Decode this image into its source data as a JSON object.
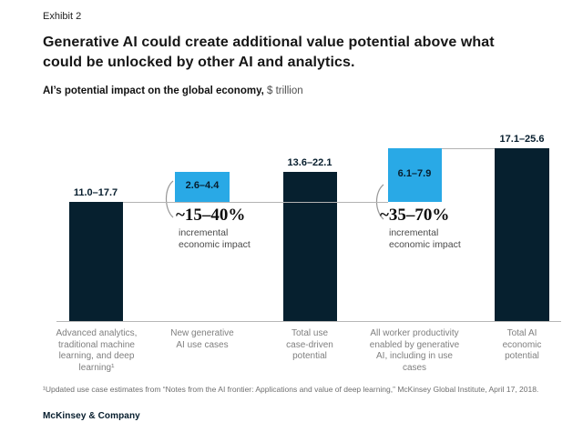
{
  "page": {
    "exhibit_label": "Exhibit 2",
    "title_lines": [
      "Generative AI could create additional value potential above what",
      "could be unlocked by other AI and analytics."
    ],
    "subtitle_bold": "AI’s potential impact on the global economy,",
    "subtitle_unit": " $ trillion",
    "footnote": "¹Updated use case estimates from “Notes from the AI frontier: Applications and value of deep learning,” McKinsey Global Institute, April 17, 2018.",
    "brand": "McKinsey & Company"
  },
  "colors": {
    "navy_bar": "#06202f",
    "blue_bar": "#29a9e6",
    "connector_line": "#b3b3b3",
    "category_text": "#7f7f7f",
    "annotation_text": "#4a4a4a"
  },
  "chart_data": {
    "type": "bar",
    "subtype": "waterfall",
    "title": "AI’s potential impact on the global economy, $ trillion",
    "unit": "$ trillion",
    "ylim": [
      0,
      26
    ],
    "grid": false,
    "legend": false,
    "categories": [
      "Advanced analytics, traditional machine learning, and deep learning¹",
      "New generative AI use cases",
      "Total use case-driven potential",
      "All worker productivity enabled by generative AI, including in use cases",
      "Total AI economic potential"
    ],
    "bars": [
      {
        "label": "11.0–17.7",
        "range_low": 11.0,
        "range_high": 17.7,
        "kind": "total",
        "top_value": 17.7,
        "extent": 17.7,
        "color": "#06202f",
        "category_lines": [
          "Advanced analytics,",
          "traditional machine",
          "learning, and deep",
          "learning¹"
        ]
      },
      {
        "label": "2.6–4.4",
        "range_low": 2.6,
        "range_high": 4.4,
        "kind": "increment",
        "top_value": 22.1,
        "extent": 4.4,
        "color": "#29a9e6",
        "category_lines": [
          "New generative",
          "AI use cases"
        ]
      },
      {
        "label": "13.6–22.1",
        "range_low": 13.6,
        "range_high": 22.1,
        "kind": "total",
        "top_value": 22.1,
        "extent": 22.1,
        "color": "#06202f",
        "category_lines": [
          "Total use",
          "case-driven",
          "potential"
        ]
      },
      {
        "label": "6.1–7.9",
        "range_low": 6.1,
        "range_high": 7.9,
        "kind": "increment",
        "top_value": 25.6,
        "extent": 7.9,
        "color": "#29a9e6",
        "category_lines": [
          "All worker productivity",
          "enabled by generative",
          "AI, including in use",
          "cases"
        ]
      },
      {
        "label": "17.1–25.6",
        "range_low": 17.1,
        "range_high": 25.6,
        "kind": "total",
        "top_value": 25.6,
        "extent": 25.6,
        "color": "#06202f",
        "category_lines": [
          "Total AI",
          "economic",
          "potential"
        ]
      }
    ],
    "annotations": [
      {
        "pct": "~15–40%",
        "lines": [
          "incremental",
          "economic impact"
        ]
      },
      {
        "pct": "~35–70%",
        "lines": [
          "incremental",
          "economic impact"
        ]
      }
    ]
  }
}
